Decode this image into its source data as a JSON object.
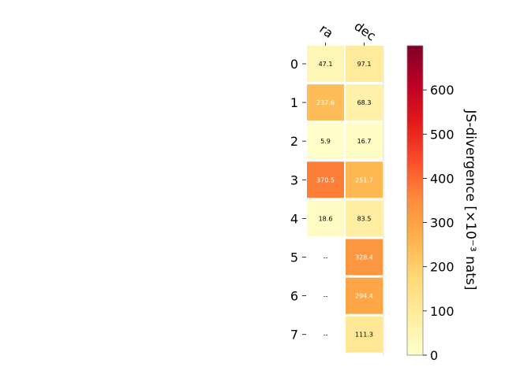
{
  "chart_data": {
    "type": "heatmap",
    "columns": [
      "ra",
      "dec"
    ],
    "rows": [
      "0",
      "1",
      "2",
      "3",
      "4",
      "5",
      "6",
      "7"
    ],
    "values": [
      [
        47.1,
        97.1
      ],
      [
        237.6,
        68.3
      ],
      [
        5.9,
        16.7
      ],
      [
        370.5,
        251.7
      ],
      [
        18.6,
        83.5
      ],
      [
        null,
        328.4
      ],
      [
        null,
        294.4
      ],
      [
        null,
        111.3
      ]
    ],
    "cell_labels": [
      [
        "47.1",
        "97.1"
      ],
      [
        "237.6",
        "68.3"
      ],
      [
        "5.9",
        "16.7"
      ],
      [
        "370.5",
        "251.7"
      ],
      [
        "18.6",
        "83.5"
      ],
      [
        "--",
        "328.4"
      ],
      [
        "--",
        "294.4"
      ],
      [
        "--",
        "111.3"
      ]
    ],
    "colorbar": {
      "label": "JS-divergence [×10⁻³ nats]",
      "range": [
        0,
        700
      ],
      "ticks": [
        "0",
        "100",
        "200",
        "300",
        "400",
        "500",
        "600"
      ],
      "colormap": "YlOrRd"
    },
    "grid": false
  }
}
